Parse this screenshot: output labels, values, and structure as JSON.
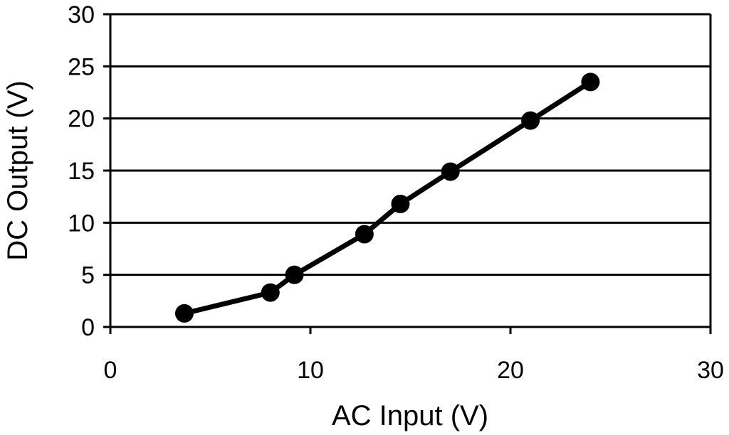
{
  "chart_data": {
    "type": "line",
    "title": "",
    "xlabel": "AC Input (V)",
    "ylabel": "DC Output (V)",
    "xlim": [
      0,
      30
    ],
    "ylim": [
      0,
      30
    ],
    "xticks": [
      0,
      10,
      20,
      30
    ],
    "yticks": [
      0,
      5,
      10,
      15,
      20,
      25,
      30
    ],
    "grid": "horizontal",
    "legend": "none",
    "series": [
      {
        "color": "#000000",
        "x": [
          3.7,
          8.0,
          9.2,
          12.7,
          14.5,
          17.0,
          21.0,
          24.0
        ],
        "y": [
          1.3,
          3.3,
          5.0,
          8.9,
          11.8,
          14.9,
          19.8,
          23.5
        ]
      }
    ]
  }
}
